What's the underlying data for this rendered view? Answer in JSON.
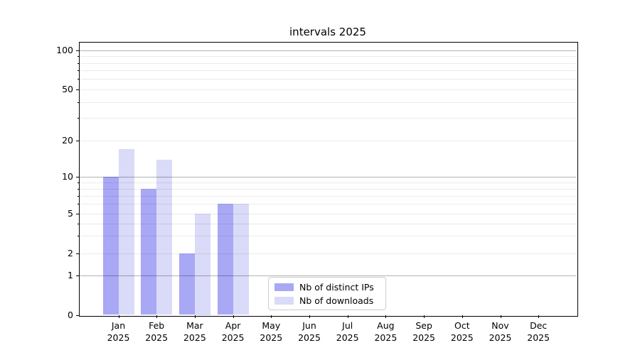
{
  "title": "intervals 2025",
  "chart_data": {
    "type": "bar",
    "title": "intervals 2025",
    "categories": [
      "Jan 2025",
      "Feb 2025",
      "Mar 2025",
      "Apr 2025",
      "May 2025",
      "Jun 2025",
      "Jul 2025",
      "Aug 2025",
      "Sep 2025",
      "Oct 2025",
      "Nov 2025",
      "Dec 2025"
    ],
    "series": [
      {
        "name": "Nb of distinct IPs",
        "color": "#a8a8f5",
        "values": [
          10,
          8,
          2,
          6,
          0,
          0,
          0,
          0,
          0,
          0,
          0,
          0
        ]
      },
      {
        "name": "Nb of downloads",
        "color": "#dadaf9",
        "values": [
          17,
          14,
          5,
          6,
          0,
          0,
          0,
          0,
          0,
          0,
          0,
          0
        ]
      }
    ],
    "xlabel": "",
    "ylabel": "",
    "yscale": "symlog",
    "ylim": [
      0,
      115
    ],
    "ytick_values": [
      0,
      1,
      2,
      5,
      10,
      20,
      50,
      100
    ],
    "ytick_labels": [
      "0",
      "1",
      "2",
      "5",
      "10",
      "20",
      "50",
      "100"
    ],
    "major_gridlines": [
      1,
      10,
      100
    ],
    "minor_gridlines": [
      2,
      3,
      4,
      5,
      6,
      7,
      8,
      9,
      20,
      30,
      40,
      50,
      60,
      70,
      80,
      90
    ],
    "grid": "horizontal",
    "legend_position": "lower center"
  },
  "legend": {
    "items": [
      {
        "label": "Nb of distinct IPs",
        "color": "#a8a8f5"
      },
      {
        "label": "Nb of downloads",
        "color": "#dadaf9"
      }
    ]
  },
  "colors": {
    "background": "#ffffff",
    "spine": "#000000",
    "grid_major": "rgba(0,0,0,0.30)",
    "grid_minor": "rgba(0,0,0,0.08)",
    "legend_border": "#cccccc",
    "text": "#000000"
  }
}
